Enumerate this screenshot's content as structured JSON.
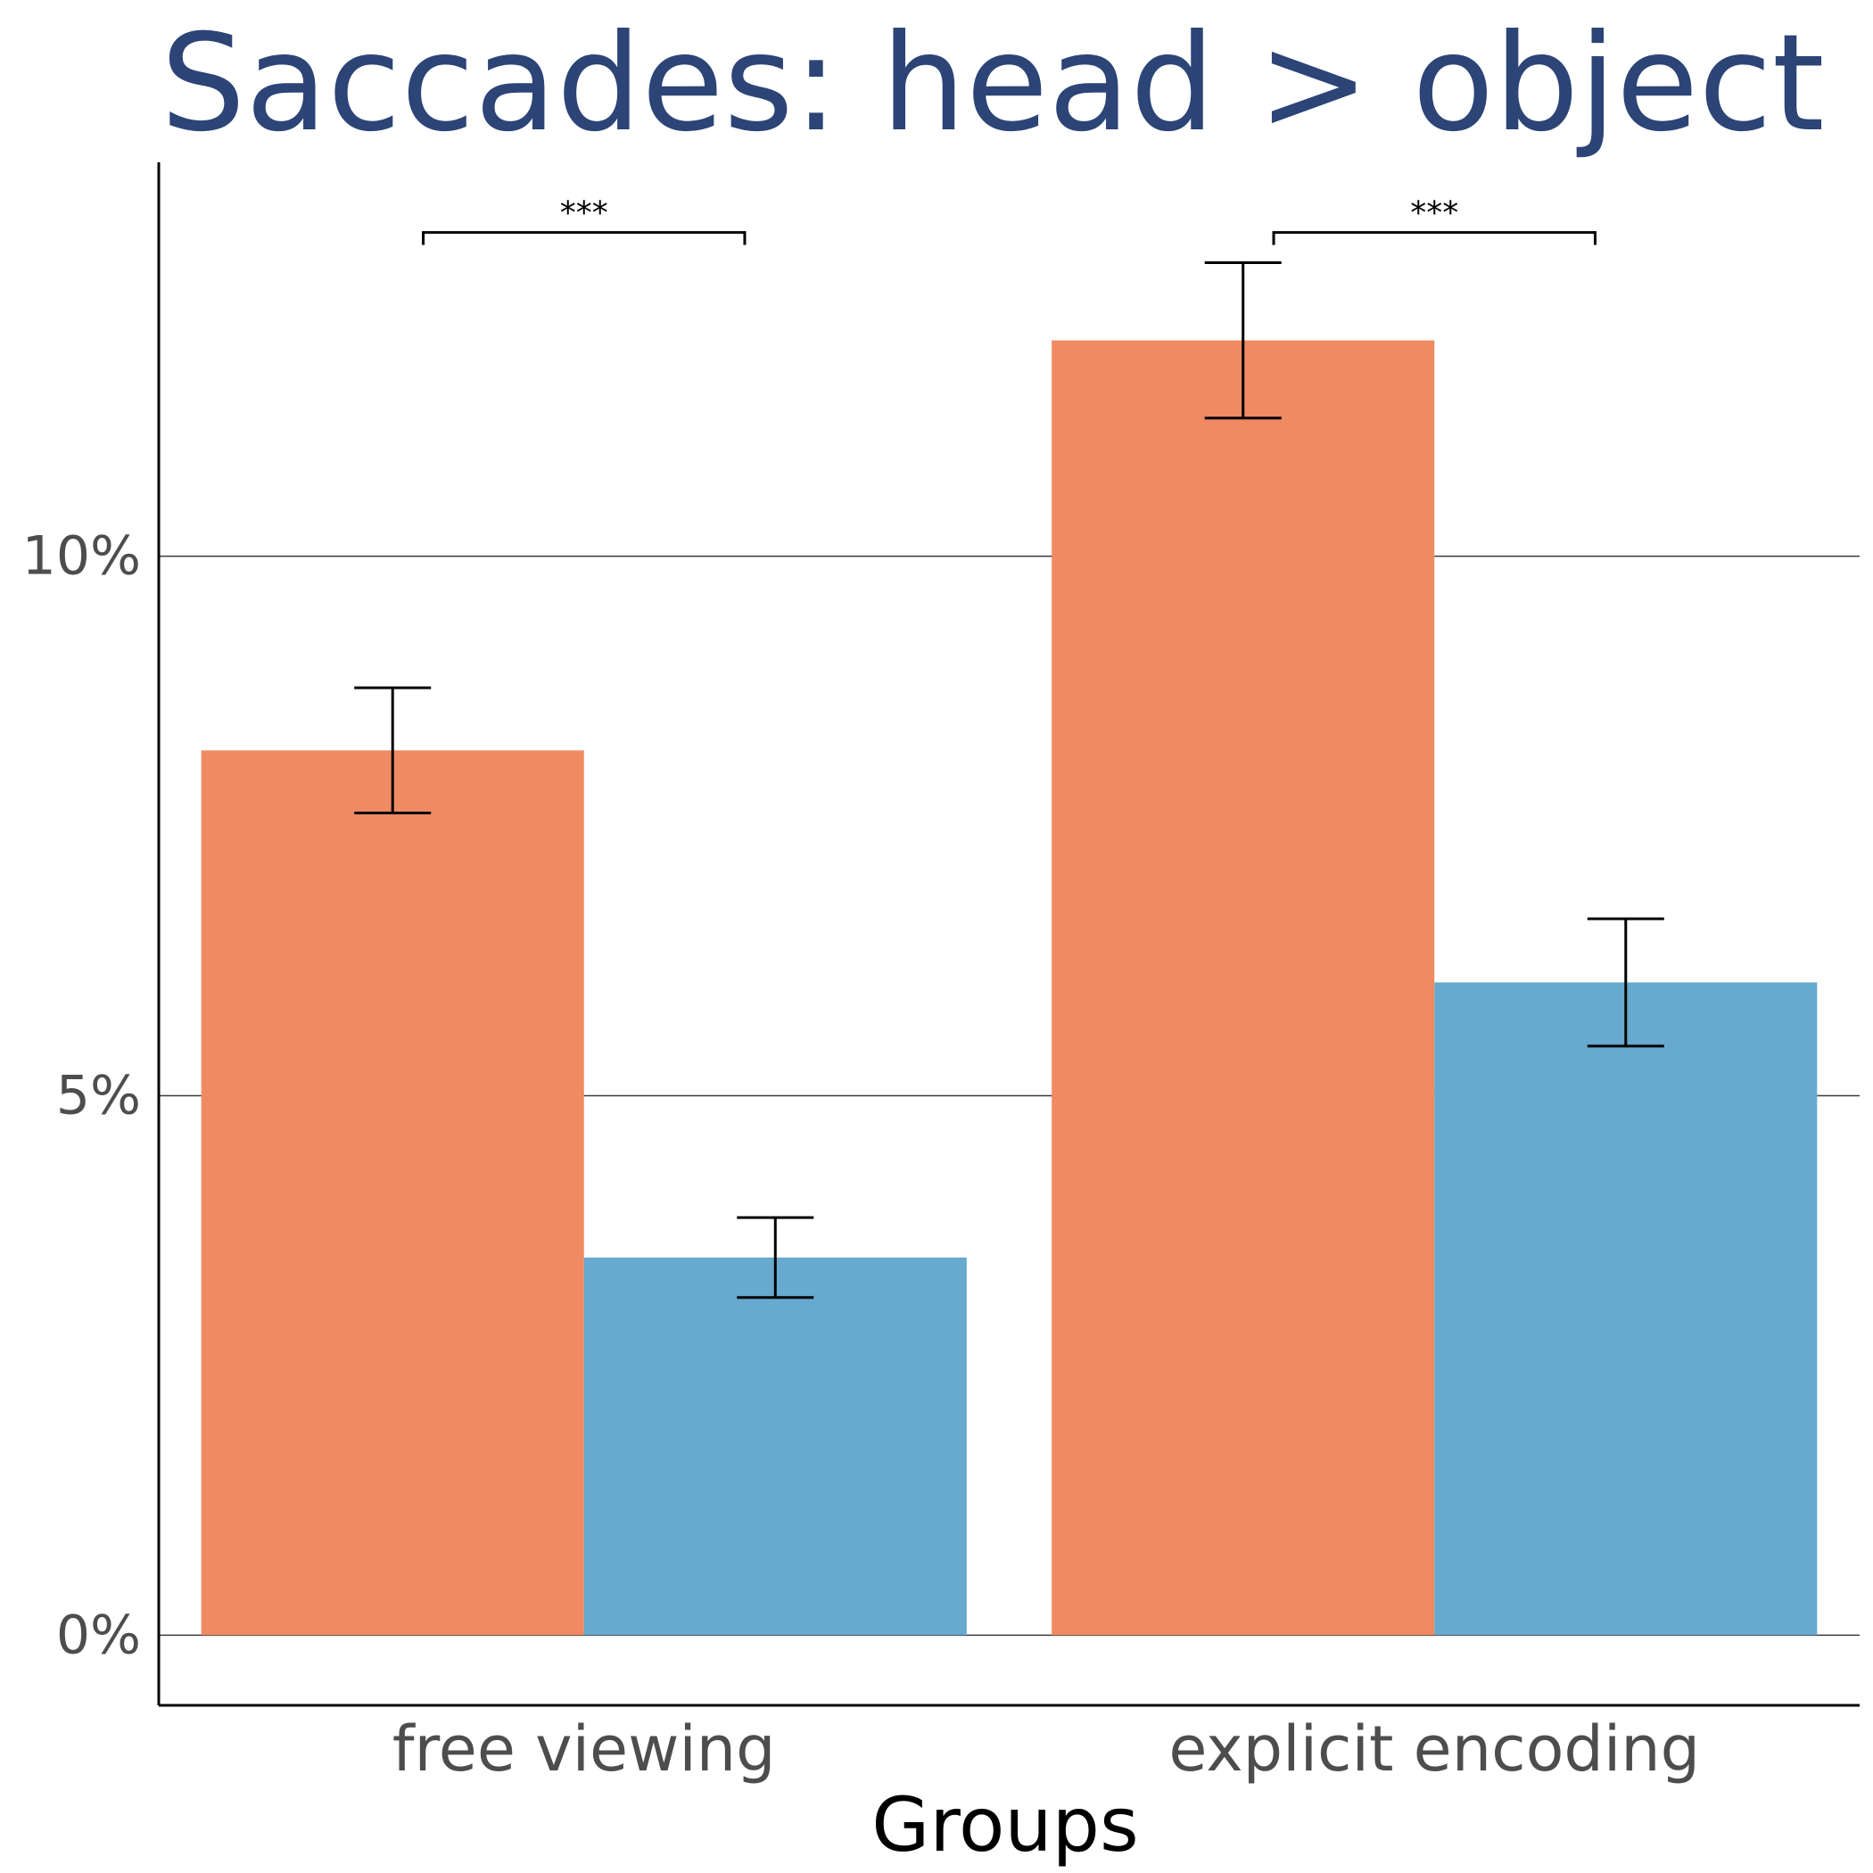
{
  "chart_data": {
    "type": "bar",
    "title": "Saccades: head > object",
    "xlabel": "Groups",
    "ylabel": "",
    "categories": [
      "free viewing",
      "explicit encoding"
    ],
    "series": [
      {
        "values": [
          8.2,
          12.0
        ],
        "error": [
          0.58,
          0.72
        ],
        "color": "#ef8a62"
      },
      {
        "values": [
          3.5,
          6.05
        ],
        "error": [
          0.37,
          0.59
        ],
        "color": "#67a9cf"
      }
    ],
    "yticks": [
      0,
      5,
      10
    ],
    "ytick_labels": [
      "0%",
      "5%",
      "10%"
    ],
    "ylim": [
      -0.65,
      13.65
    ],
    "grid": true,
    "legend": "none",
    "significance": [
      {
        "category": "free viewing",
        "label": "***",
        "level": 13.0
      },
      {
        "category": "explicit encoding",
        "label": "***",
        "level": 13.0
      }
    ]
  }
}
